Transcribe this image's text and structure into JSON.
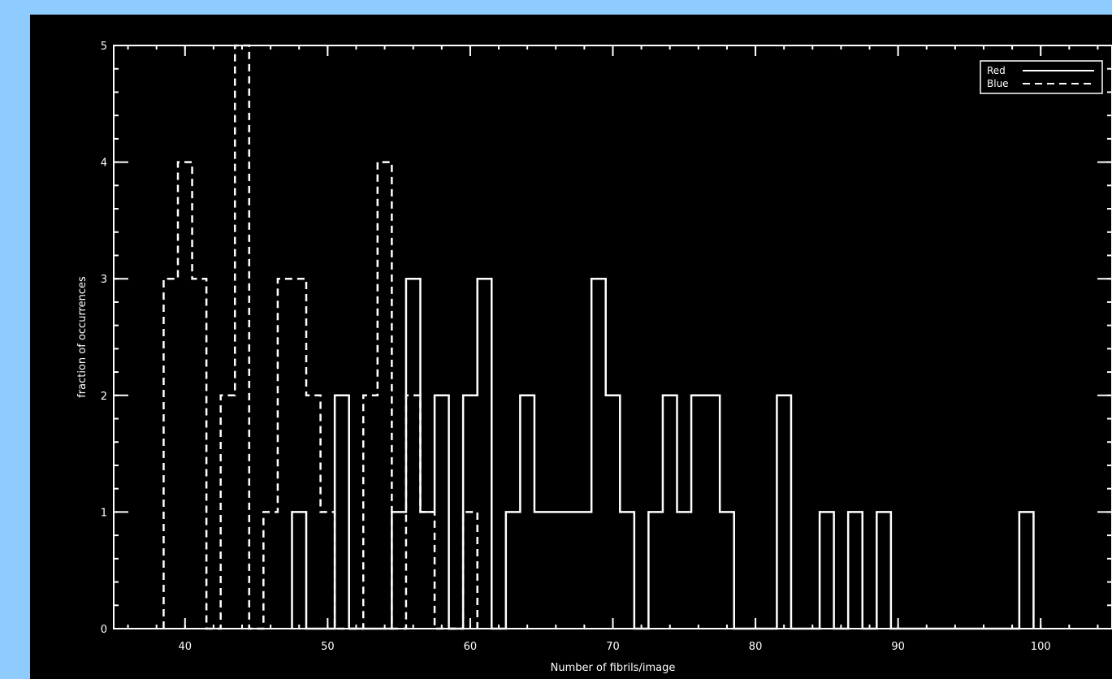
{
  "chart_data": {
    "type": "histogram",
    "title": "",
    "xlabel": "Number of fibrils/image",
    "ylabel": "fraction of occurrences",
    "xlim": [
      35,
      105
    ],
    "ylim": [
      0,
      5
    ],
    "xticks": [
      40,
      50,
      60,
      70,
      80,
      90,
      100
    ],
    "yticks": [
      0,
      1,
      2,
      3,
      4,
      5
    ],
    "grid": false,
    "legend": "top-right",
    "bin_width": 1,
    "series": [
      {
        "name": "Red",
        "line_style": "solid",
        "color": "#ffffff",
        "bins": [
          [
            47.5,
            1
          ],
          [
            48.5,
            0
          ],
          [
            50.5,
            2
          ],
          [
            51.5,
            0
          ],
          [
            54.5,
            1
          ],
          [
            55.5,
            3
          ],
          [
            56.5,
            1
          ],
          [
            57.5,
            2
          ],
          [
            58.5,
            0
          ],
          [
            59.5,
            2
          ],
          [
            60.5,
            3
          ],
          [
            61.5,
            0
          ],
          [
            62.5,
            1
          ],
          [
            63.5,
            2
          ],
          [
            64.5,
            1
          ],
          [
            68.5,
            3
          ],
          [
            69.5,
            2
          ],
          [
            70.5,
            1
          ],
          [
            71.5,
            0
          ],
          [
            72.5,
            1
          ],
          [
            73.5,
            2
          ],
          [
            74.5,
            1
          ],
          [
            75.5,
            2
          ],
          [
            77.5,
            1
          ],
          [
            78.5,
            0
          ],
          [
            81.5,
            2
          ],
          [
            82.5,
            0
          ],
          [
            84.5,
            1
          ],
          [
            85.5,
            0
          ],
          [
            86.5,
            1
          ],
          [
            87.5,
            0
          ],
          [
            88.5,
            1
          ],
          [
            89.5,
            0
          ],
          [
            98.5,
            1
          ],
          [
            99.5,
            0
          ]
        ]
      },
      {
        "name": "Blue",
        "line_style": "dashed",
        "color": "#ffffff",
        "bins": [
          [
            38.5,
            3
          ],
          [
            39.5,
            4
          ],
          [
            40.5,
            3
          ],
          [
            41.5,
            0
          ],
          [
            42.5,
            2
          ],
          [
            43.5,
            5
          ],
          [
            44.5,
            0
          ],
          [
            45.5,
            1
          ],
          [
            46.5,
            3
          ],
          [
            48.5,
            2
          ],
          [
            49.5,
            1
          ],
          [
            50.5,
            0
          ],
          [
            52.5,
            2
          ],
          [
            53.5,
            4
          ],
          [
            54.5,
            0
          ],
          [
            55.5,
            2
          ],
          [
            56.5,
            1
          ],
          [
            57.5,
            0
          ],
          [
            59.5,
            1
          ],
          [
            60.5,
            0
          ]
        ]
      }
    ]
  }
}
